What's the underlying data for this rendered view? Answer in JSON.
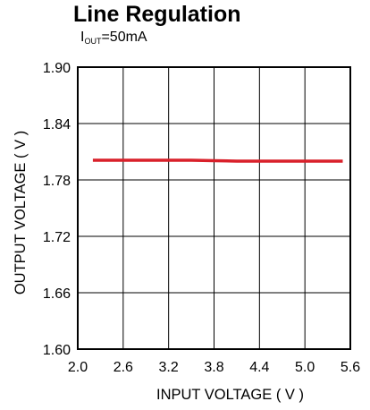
{
  "chart_data": {
    "type": "line",
    "title": "Line Regulation",
    "subtitle": {
      "symbol": "I",
      "subscript": "OUT",
      "rest": "=50mA"
    },
    "xlabel": "INPUT VOLTAGE ( V )",
    "ylabel": "OUTPUT VOLTAGE ( V )",
    "xlim": [
      2.0,
      5.6
    ],
    "ylim": [
      1.6,
      1.9
    ],
    "x_ticks": [
      "2.0",
      "2.6",
      "3.2",
      "3.8",
      "4.4",
      "5.0",
      "5.6"
    ],
    "y_ticks": [
      "1.90",
      "1.84",
      "1.78",
      "1.72",
      "1.66",
      "1.60"
    ],
    "grid": true,
    "series": [
      {
        "color": "#d9202a",
        "x": [
          2.2,
          2.6,
          3.0,
          3.5,
          3.8,
          4.1,
          4.4,
          4.8,
          5.2,
          5.5
        ],
        "y": [
          1.801,
          1.801,
          1.801,
          1.801,
          1.8005,
          1.8,
          1.8,
          1.8,
          1.8,
          1.8
        ]
      }
    ]
  }
}
